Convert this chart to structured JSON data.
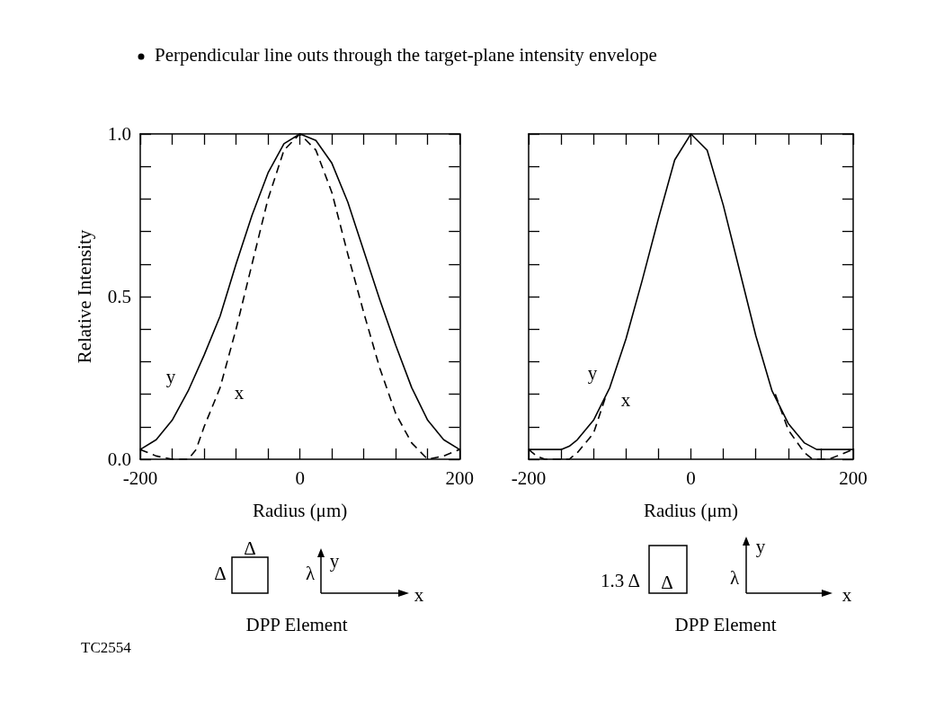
{
  "chart_data": [
    {
      "type": "line",
      "title": "Perpendicular line outs through the target-plane intensity envelope",
      "xlabel": "Radius (μm)",
      "ylabel": "Relative Intensity",
      "xlim": [
        -200,
        200
      ],
      "ylim": [
        0,
        1
      ],
      "xticks": [
        {
          "value": -200,
          "label": "-200"
        },
        {
          "value": -160,
          "label": null
        },
        {
          "value": -120,
          "label": null
        },
        {
          "value": -80,
          "label": null
        },
        {
          "value": -40,
          "label": null
        },
        {
          "value": 0,
          "label": "0"
        },
        {
          "value": 40,
          "label": null
        },
        {
          "value": 80,
          "label": null
        },
        {
          "value": 120,
          "label": null
        },
        {
          "value": 160,
          "label": null
        },
        {
          "value": 200,
          "label": "200"
        }
      ],
      "yticks": [
        {
          "value": 0,
          "label": "0.0"
        },
        {
          "value": 0.1,
          "label": null
        },
        {
          "value": 0.2,
          "label": null
        },
        {
          "value": 0.3,
          "label": null
        },
        {
          "value": 0.4,
          "label": null
        },
        {
          "value": 0.5,
          "label": "0.5"
        },
        {
          "value": 0.6,
          "label": null
        },
        {
          "value": 0.7,
          "label": null
        },
        {
          "value": 0.8,
          "label": null
        },
        {
          "value": 0.9,
          "label": null
        },
        {
          "value": 1,
          "label": "1.0"
        }
      ],
      "grid": false,
      "marker": "none",
      "series": [
        {
          "name": "y",
          "color": "#000000",
          "line_style": "solid",
          "x": [
            -200,
            -180,
            -160,
            -140,
            -120,
            -100,
            -80,
            -60,
            -40,
            -20,
            0,
            20,
            40,
            60,
            80,
            100,
            120,
            140,
            160,
            180,
            200
          ],
          "values": [
            0.03,
            0.06,
            0.12,
            0.21,
            0.32,
            0.44,
            0.6,
            0.75,
            0.88,
            0.97,
            1.0,
            0.98,
            0.91,
            0.79,
            0.64,
            0.49,
            0.35,
            0.22,
            0.12,
            0.06,
            0.03
          ]
        },
        {
          "name": "x",
          "color": "#000000",
          "line_style": "dashed",
          "x": [
            -200,
            -180,
            -160,
            -140,
            -130,
            -120,
            -100,
            -80,
            -60,
            -40,
            -20,
            0,
            20,
            40,
            60,
            80,
            100,
            120,
            140,
            160,
            180,
            200
          ],
          "values": [
            0.03,
            0.01,
            0.0,
            0.0,
            0.03,
            0.1,
            0.22,
            0.4,
            0.6,
            0.8,
            0.95,
            1.0,
            0.95,
            0.82,
            0.63,
            0.45,
            0.28,
            0.14,
            0.05,
            0.0,
            0.01,
            0.03
          ]
        }
      ],
      "annotations": [
        "Δ",
        "Δ",
        "λ",
        "y",
        "x",
        "DPP Element",
        "TC2554"
      ]
    },
    {
      "type": "line",
      "xlabel": "Radius (μm)",
      "xlim": [
        -200,
        200
      ],
      "ylim": [
        0,
        1
      ],
      "tick_labels": "x",
      "xticks": [
        {
          "value": -200,
          "label": "-200"
        },
        {
          "value": -160,
          "label": null
        },
        {
          "value": -120,
          "label": null
        },
        {
          "value": -80,
          "label": null
        },
        {
          "value": -40,
          "label": null
        },
        {
          "value": 0,
          "label": "0"
        },
        {
          "value": 40,
          "label": null
        },
        {
          "value": 80,
          "label": null
        },
        {
          "value": 120,
          "label": null
        },
        {
          "value": 160,
          "label": null
        },
        {
          "value": 200,
          "label": "200"
        }
      ],
      "yticks": [
        {
          "value": 0,
          "label": null
        },
        {
          "value": 0.1,
          "label": null
        },
        {
          "value": 0.2,
          "label": null
        },
        {
          "value": 0.3,
          "label": null
        },
        {
          "value": 0.4,
          "label": null
        },
        {
          "value": 0.5,
          "label": null
        },
        {
          "value": 0.6,
          "label": null
        },
        {
          "value": 0.7,
          "label": null
        },
        {
          "value": 0.8,
          "label": null
        },
        {
          "value": 0.9,
          "label": null
        },
        {
          "value": 1,
          "label": null
        }
      ],
      "grid": false,
      "marker": "none",
      "series": [
        {
          "name": "y",
          "color": "#000000",
          "line_style": "solid",
          "x": [
            -200,
            -180,
            -160,
            -150,
            -140,
            -120,
            -100,
            -80,
            -60,
            -40,
            -20,
            0,
            20,
            40,
            60,
            80,
            100,
            120,
            140,
            155,
            180,
            200
          ],
          "values": [
            0.03,
            0.03,
            0.03,
            0.04,
            0.06,
            0.12,
            0.22,
            0.37,
            0.55,
            0.74,
            0.92,
            1.0,
            0.95,
            0.78,
            0.58,
            0.38,
            0.21,
            0.11,
            0.05,
            0.03,
            0.03,
            0.03
          ]
        },
        {
          "name": "x",
          "color": "#000000",
          "line_style": "dashed",
          "x": [
            -200,
            -190,
            -180,
            -150,
            -140,
            -120,
            -104,
            0,
            104,
            120,
            140,
            150,
            170,
            180,
            200
          ],
          "values": [
            0.03,
            0.01,
            0.0,
            0.0,
            0.02,
            0.08,
            0.2,
            null,
            0.2,
            0.09,
            0.02,
            0.0,
            0.0,
            0.01,
            0.03
          ]
        }
      ],
      "annotations": [
        "1.3 Δ",
        "Δ",
        "λ",
        "y",
        "x",
        "DPP Element"
      ]
    }
  ]
}
